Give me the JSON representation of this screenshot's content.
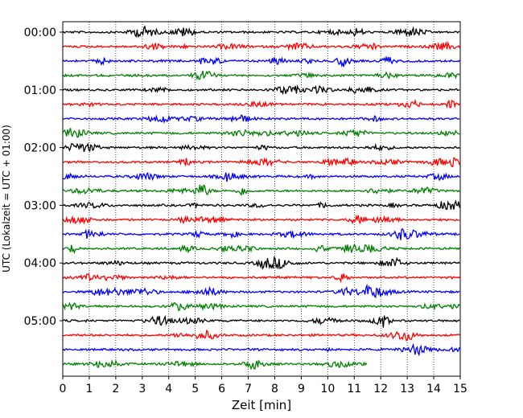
{
  "chart_data": {
    "type": "line",
    "title": "",
    "xlabel": "Zeit  [min]",
    "ylabel": "UTC (Lokalzeit = UTC + 01:00)",
    "xlim": [
      0,
      15
    ],
    "xticks": [
      "0",
      "1",
      "2",
      "3",
      "4",
      "5",
      "6",
      "7",
      "8",
      "9",
      "10",
      "11",
      "12",
      "13",
      "14",
      "15"
    ],
    "yticks": [
      {
        "label": "00:00",
        "row": 0
      },
      {
        "label": "01:00",
        "row": 4
      },
      {
        "label": "02:00",
        "row": 8
      },
      {
        "label": "03:00",
        "row": 12
      },
      {
        "label": "04:00",
        "row": 16
      },
      {
        "label": "05:00",
        "row": 20
      }
    ],
    "row_minutes": 15,
    "row_count": 24,
    "grid": "vertical dotted at each minute",
    "colors": [
      "#000000",
      "#ff0000",
      "#0000ff",
      "#008000"
    ],
    "last_row_end_minute": 11.5,
    "traces": [
      {
        "start": "00:00",
        "color": "#000000"
      },
      {
        "start": "00:15",
        "color": "#ff0000"
      },
      {
        "start": "00:30",
        "color": "#0000ff"
      },
      {
        "start": "00:45",
        "color": "#008000"
      },
      {
        "start": "01:00",
        "color": "#000000"
      },
      {
        "start": "01:15",
        "color": "#ff0000"
      },
      {
        "start": "01:30",
        "color": "#0000ff"
      },
      {
        "start": "01:45",
        "color": "#008000"
      },
      {
        "start": "02:00",
        "color": "#000000"
      },
      {
        "start": "02:15",
        "color": "#ff0000"
      },
      {
        "start": "02:30",
        "color": "#0000ff"
      },
      {
        "start": "02:45",
        "color": "#008000"
      },
      {
        "start": "03:00",
        "color": "#000000"
      },
      {
        "start": "03:15",
        "color": "#ff0000"
      },
      {
        "start": "03:30",
        "color": "#0000ff"
      },
      {
        "start": "03:45",
        "color": "#008000"
      },
      {
        "start": "04:00",
        "color": "#000000"
      },
      {
        "start": "04:15",
        "color": "#ff0000"
      },
      {
        "start": "04:30",
        "color": "#0000ff"
      },
      {
        "start": "04:45",
        "color": "#008000"
      },
      {
        "start": "05:00",
        "color": "#000000"
      },
      {
        "start": "05:15",
        "color": "#ff0000"
      },
      {
        "start": "05:30",
        "color": "#0000ff"
      },
      {
        "start": "05:45",
        "color": "#008000"
      }
    ]
  }
}
